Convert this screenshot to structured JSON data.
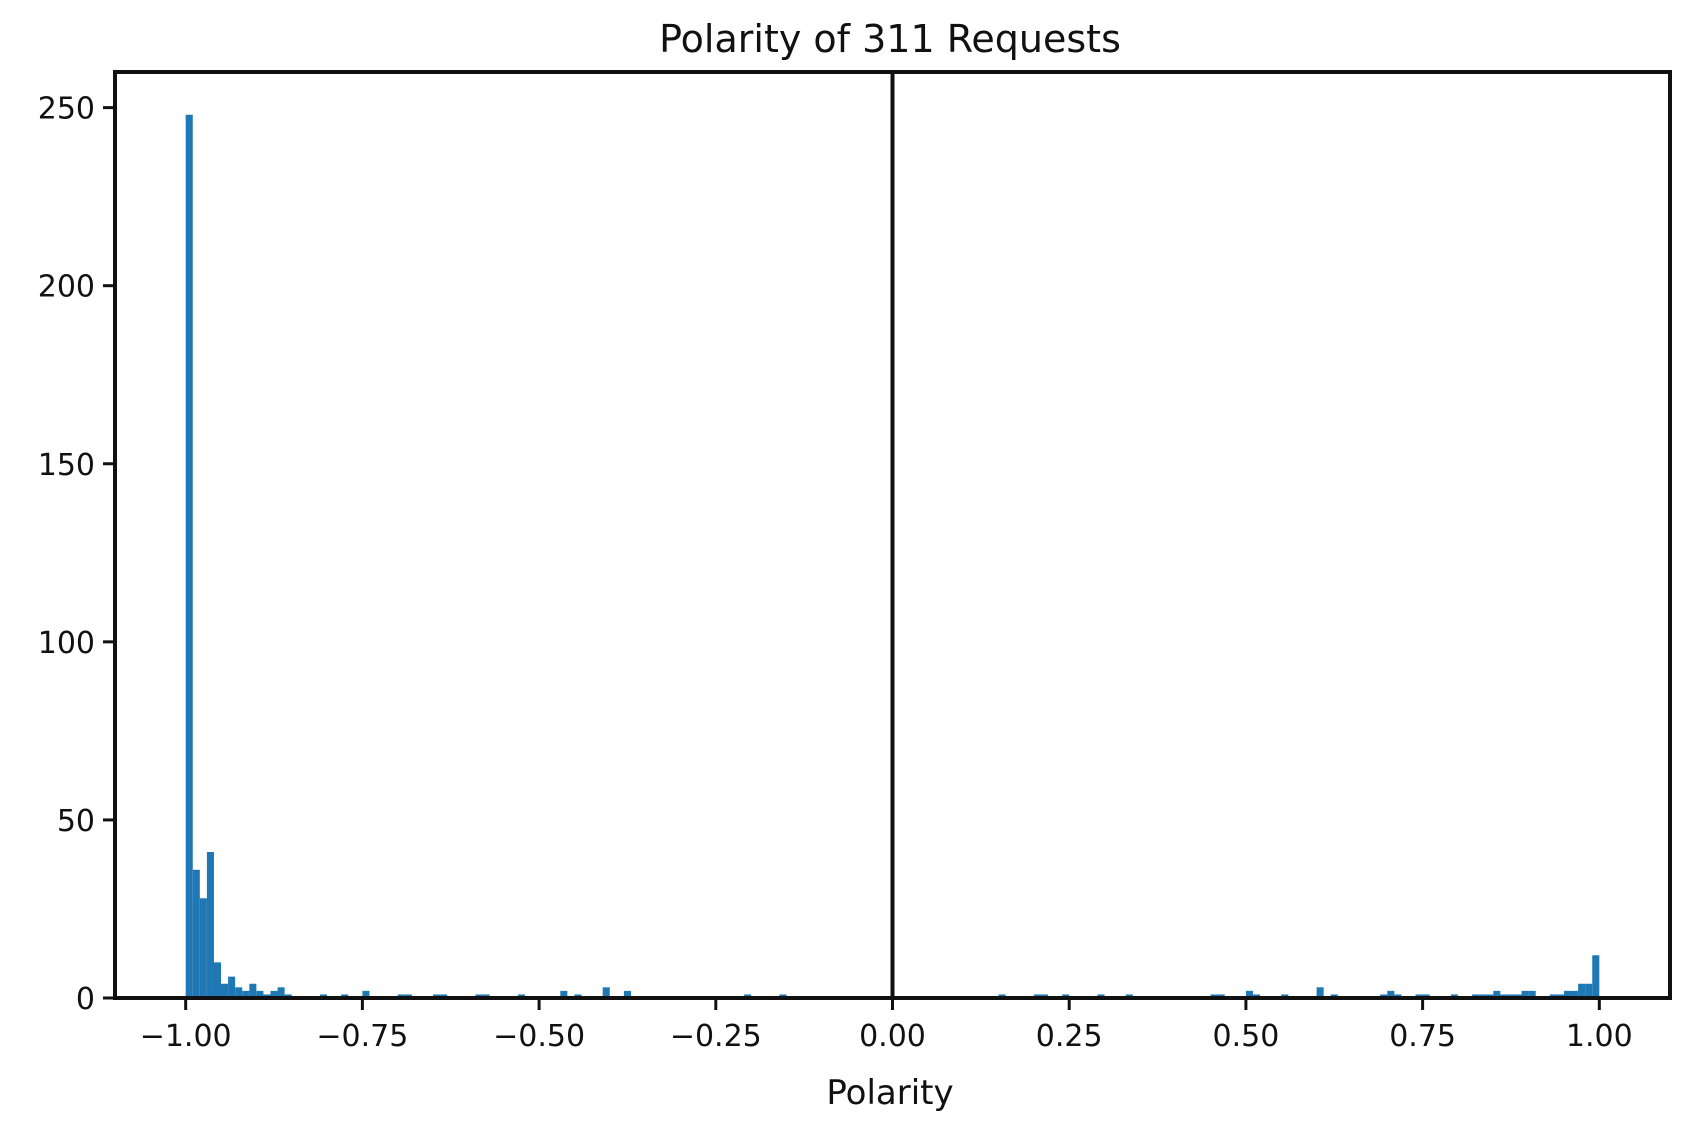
{
  "chart_data": {
    "type": "bar",
    "title": "Polarity of 311 Requests",
    "xlabel": "Polarity",
    "ylabel": "",
    "xlim": [
      -1.1,
      1.1
    ],
    "ylim": [
      0,
      260
    ],
    "bin_width": 0.01,
    "xticks": [
      -1.0,
      -0.75,
      -0.5,
      -0.25,
      0.0,
      0.25,
      0.5,
      0.75,
      1.0
    ],
    "xtick_labels": [
      "−1.00",
      "−0.75",
      "−0.50",
      "−0.25",
      "0.00",
      "0.25",
      "0.50",
      "0.75",
      "1.00"
    ],
    "yticks": [
      0,
      50,
      100,
      150,
      200,
      250
    ],
    "ytick_labels": [
      "0",
      "50",
      "100",
      "150",
      "200",
      "250"
    ],
    "reference_line_x": 0,
    "grid": false,
    "bar_color": "#1f77b4",
    "series": [
      {
        "x": [
          -1.0,
          -0.99,
          -0.98,
          -0.97,
          -0.96,
          -0.95,
          -0.94,
          -0.93,
          -0.92,
          -0.91,
          -0.9,
          -0.89,
          -0.88,
          -0.87,
          -0.86,
          -0.81,
          -0.78,
          -0.75,
          -0.7,
          -0.69,
          -0.65,
          -0.64,
          -0.59,
          -0.58,
          -0.53,
          -0.47,
          -0.45,
          -0.41,
          -0.38,
          -0.21,
          -0.16,
          0.15,
          0.2,
          0.21,
          0.24,
          0.29,
          0.33,
          0.45,
          0.46,
          0.5,
          0.51,
          0.55,
          0.6,
          0.62,
          0.69,
          0.7,
          0.71,
          0.74,
          0.75,
          0.79,
          0.82,
          0.83,
          0.84,
          0.85,
          0.86,
          0.87,
          0.88,
          0.89,
          0.9,
          0.93,
          0.94,
          0.95,
          0.96,
          0.97,
          0.98,
          0.99
        ],
        "values": [
          248,
          36,
          28,
          41,
          10,
          4,
          6,
          3,
          2,
          4,
          2,
          1,
          2,
          3,
          1,
          1,
          1,
          2,
          1,
          1,
          1,
          1,
          1,
          1,
          1,
          2,
          1,
          3,
          2,
          1,
          1,
          1,
          1,
          1,
          1,
          1,
          1,
          1,
          1,
          2,
          1,
          1,
          3,
          1,
          1,
          2,
          1,
          1,
          1,
          1,
          1,
          1,
          1,
          2,
          1,
          1,
          1,
          2,
          2,
          1,
          1,
          2,
          2,
          4,
          4,
          12
        ]
      }
    ]
  }
}
